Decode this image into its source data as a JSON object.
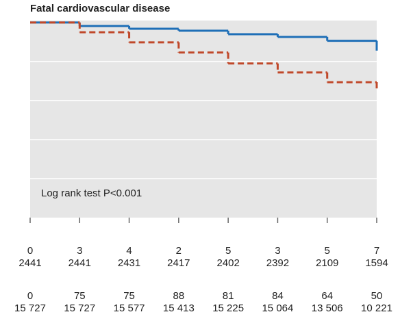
{
  "chart_data": {
    "type": "step",
    "title": "Fatal cardiovascular disease",
    "annotation": "Log rank test P<0.001",
    "x": [
      0,
      1,
      2,
      3,
      4,
      5,
      6,
      7
    ],
    "xlim": [
      0,
      7
    ],
    "ylim": [
      0,
      5.05
    ],
    "yticks": [
      1,
      2,
      3,
      4
    ],
    "grid": true,
    "series": [
      {
        "color": "#1f6fb7",
        "dash": false,
        "values": [
          5,
          4.91,
          4.84,
          4.79,
          4.7,
          4.63,
          4.53,
          4.28
        ]
      },
      {
        "color": "#c0482a",
        "dash": true,
        "values": [
          5,
          4.75,
          4.49,
          4.23,
          3.95,
          3.72,
          3.47,
          3.25
        ]
      }
    ],
    "risk_table": [
      [
        0,
        3,
        4,
        2,
        5,
        3,
        5,
        7
      ],
      [
        2441,
        2441,
        2431,
        2417,
        2402,
        2392,
        2109,
        1594
      ],
      [
        0,
        75,
        75,
        88,
        81,
        84,
        64,
        50
      ],
      [
        "15 727",
        "15 727",
        "15 577",
        "15 413",
        "15 225",
        "15 064",
        "13 506",
        "10 221"
      ]
    ]
  }
}
